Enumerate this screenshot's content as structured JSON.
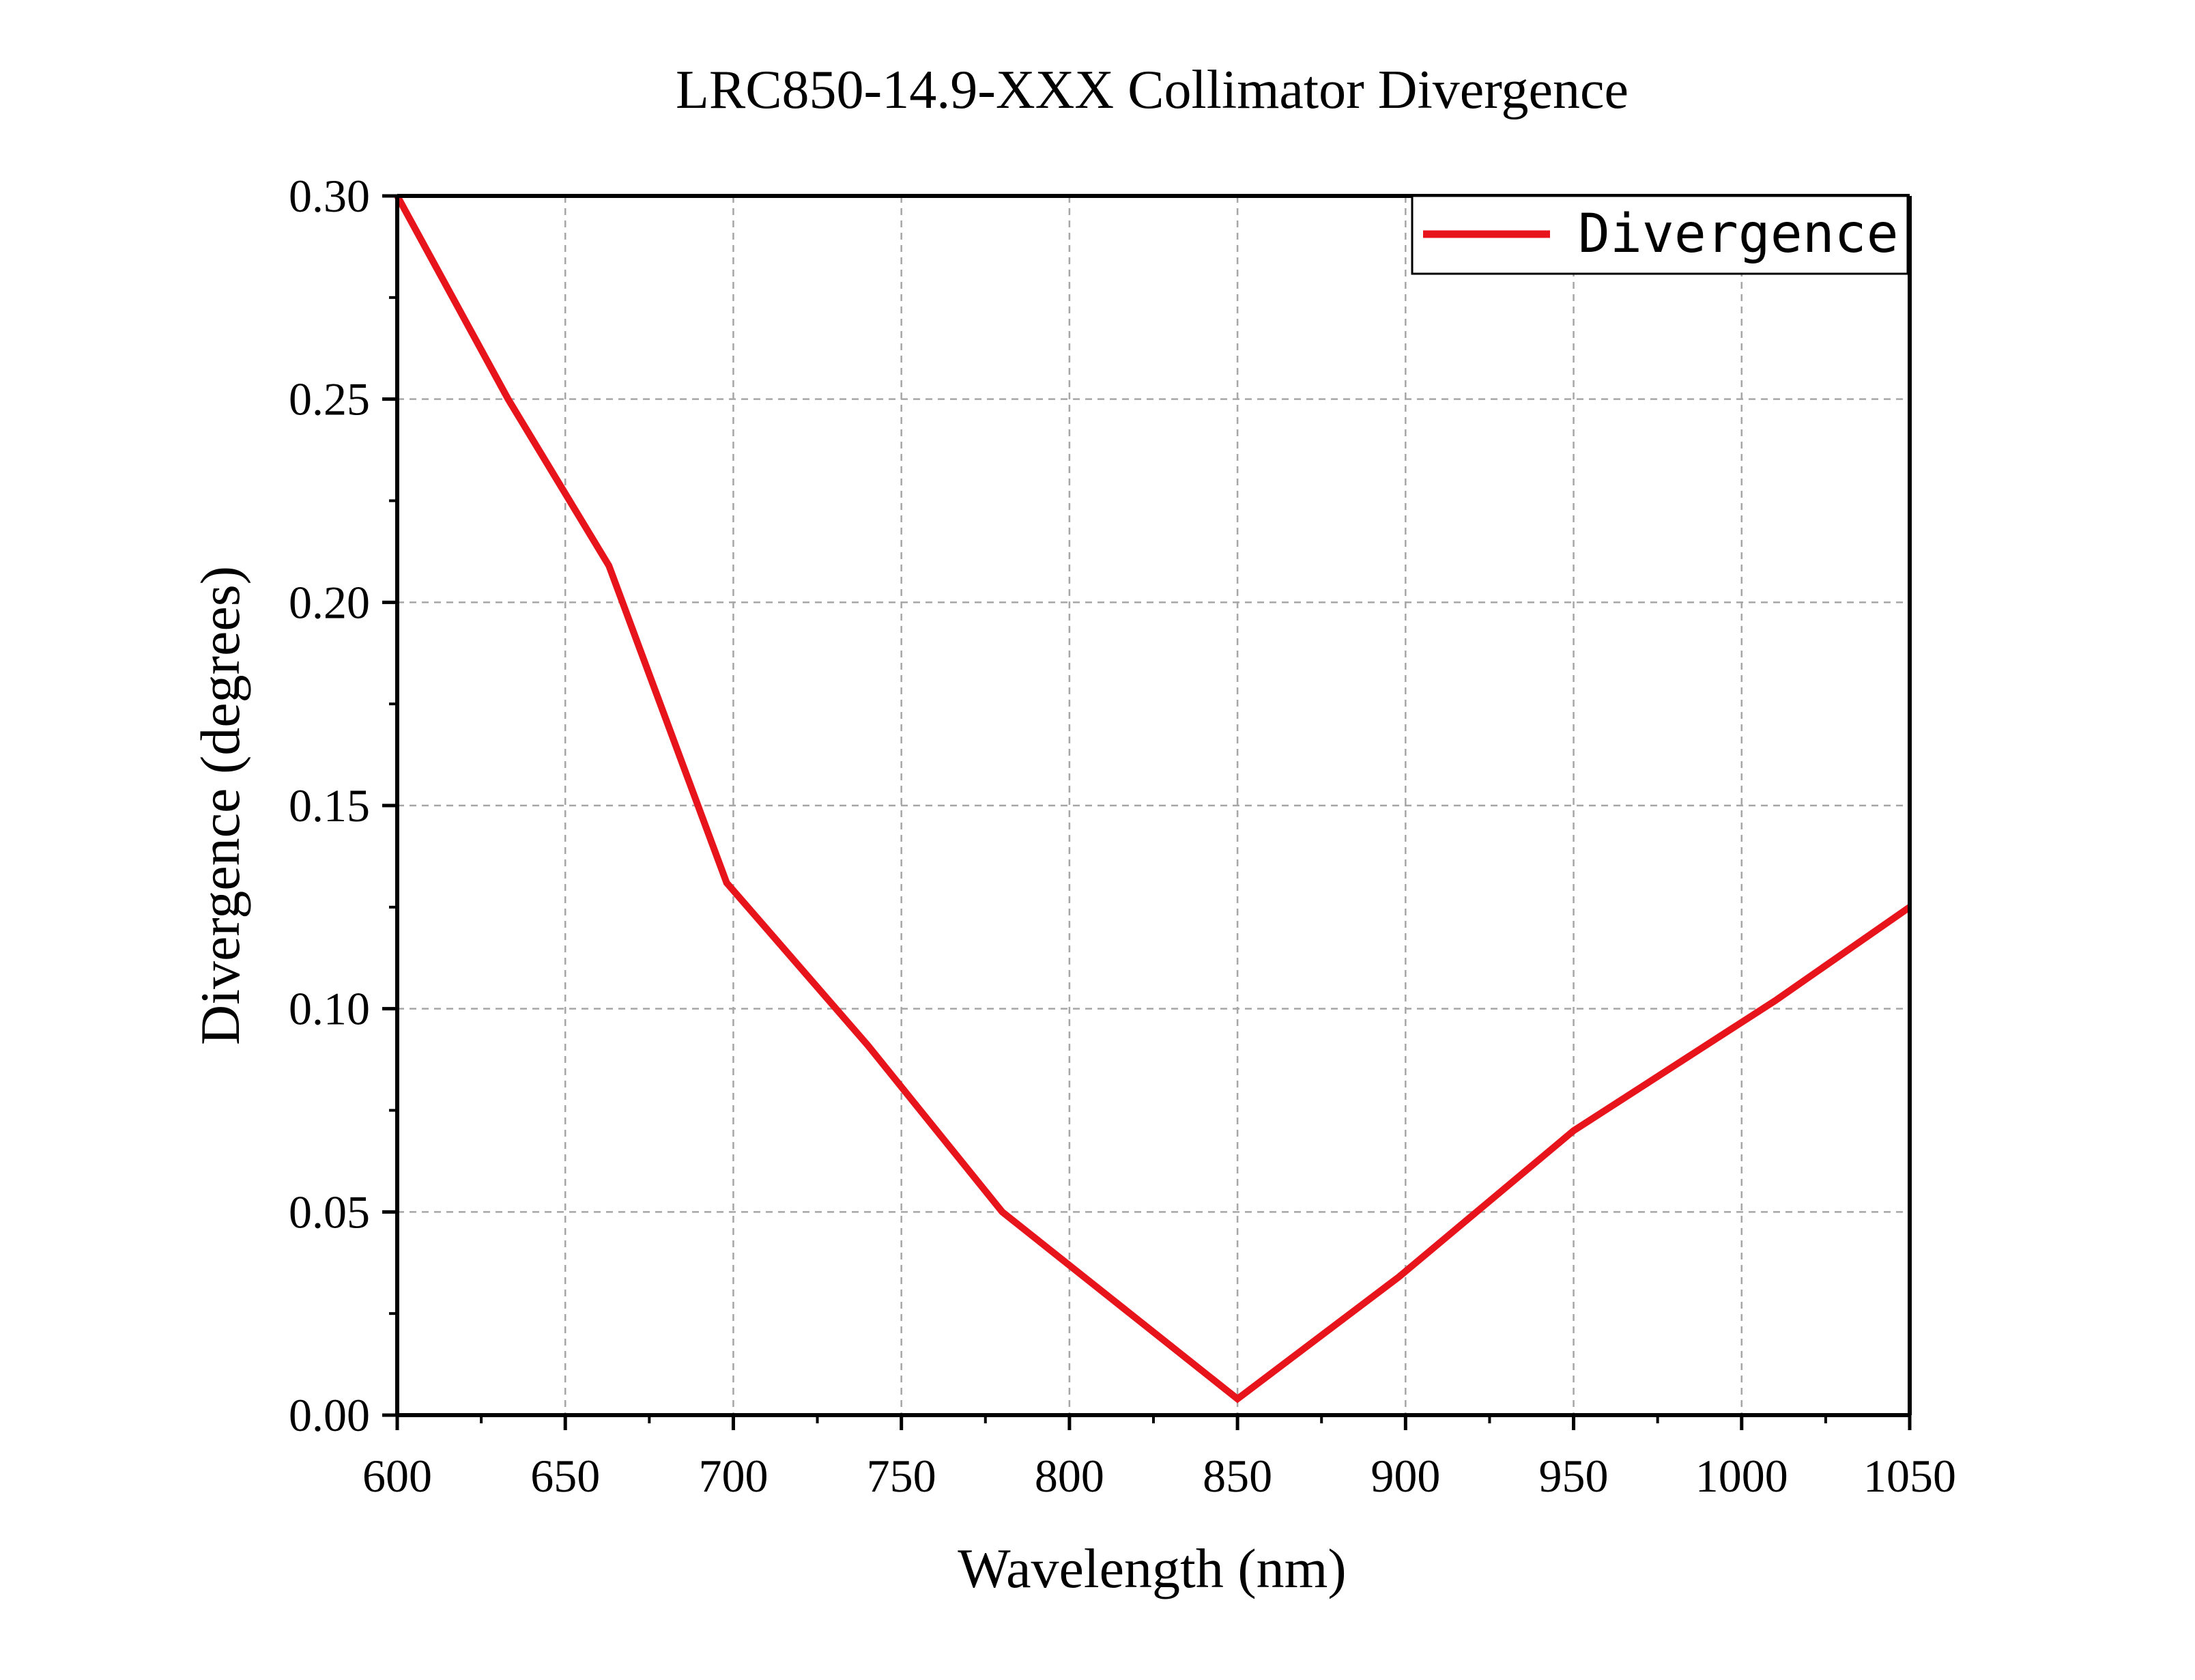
{
  "chart_data": {
    "type": "line",
    "title": "LRC850-14.9-XXX Collimator Divergence",
    "xlabel": "Wavelength (nm)",
    "ylabel": "Divergence (degrees)",
    "xlim": [
      600,
      1050
    ],
    "ylim": [
      0.0,
      0.3
    ],
    "x_ticks": [
      600,
      650,
      700,
      750,
      800,
      850,
      900,
      950,
      1000,
      1050
    ],
    "x_tick_labels": [
      "600",
      "650",
      "700",
      "750",
      "800",
      "850",
      "900",
      "950",
      "1000",
      "1050"
    ],
    "y_ticks": [
      0.0,
      0.05,
      0.1,
      0.15,
      0.2,
      0.25,
      0.3
    ],
    "y_tick_labels": [
      "0.00",
      "0.05",
      "0.10",
      "0.15",
      "0.20",
      "0.25",
      "0.30"
    ],
    "grid": true,
    "legend_position": "top-right",
    "series": [
      {
        "name": "Divergence",
        "color": "#e8141c",
        "x": [
          600,
          633,
          663,
          698,
          740,
          780,
          850,
          898,
          950,
          1010,
          1050
        ],
        "y": [
          0.3,
          0.25,
          0.209,
          0.131,
          0.091,
          0.05,
          0.004,
          0.034,
          0.07,
          0.102,
          0.125
        ]
      }
    ]
  }
}
